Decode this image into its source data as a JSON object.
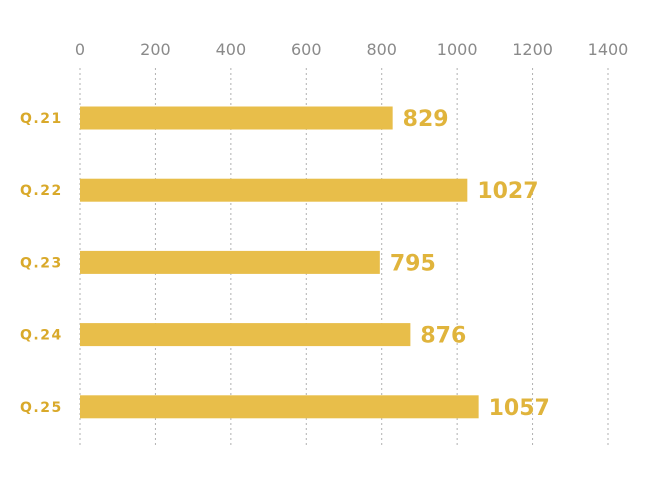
{
  "chart_data": {
    "type": "bar",
    "orientation": "horizontal",
    "categories": [
      "Q.21",
      "Q.22",
      "Q.23",
      "Q.24",
      "Q.25"
    ],
    "values": [
      829,
      1027,
      795,
      876,
      1057
    ],
    "xlim": [
      0,
      1400
    ],
    "xticks": [
      0,
      200,
      400,
      600,
      800,
      1000,
      1200,
      1400
    ],
    "tick_labels": [
      "0",
      "200",
      "400",
      "600",
      "800",
      "1000",
      "1200",
      "1400"
    ],
    "title": "",
    "xlabel": "",
    "ylabel": "",
    "grid": true,
    "x_axis_position": "top",
    "legend": "none",
    "data_labels": true,
    "colors": {
      "bar": "#E8BE4A",
      "category_label": "#D9A92A",
      "value_label": "#E0B43C",
      "tick_label": "#8A8A8A",
      "grid": "#B0B0B0"
    }
  }
}
